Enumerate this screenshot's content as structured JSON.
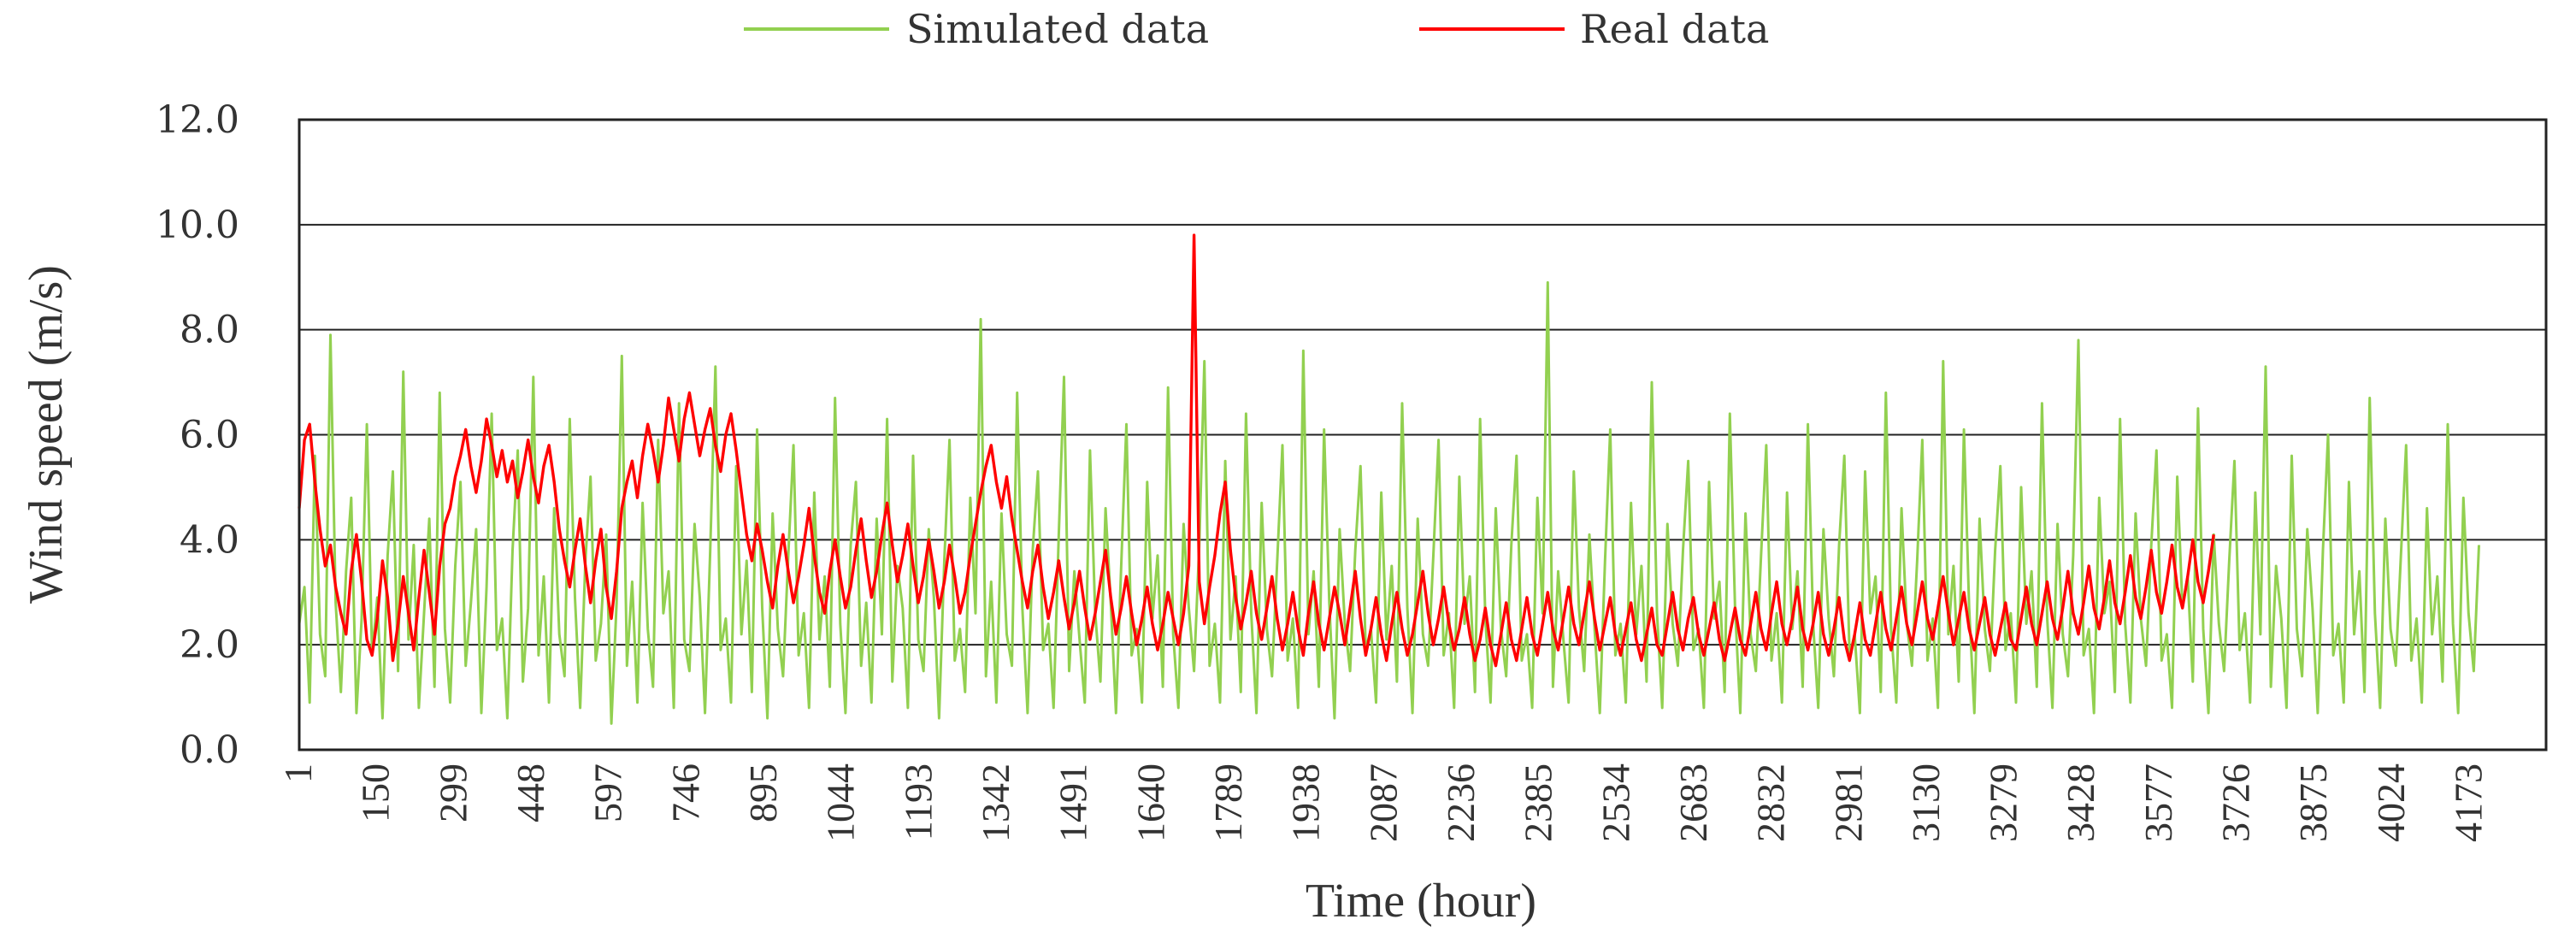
{
  "chart_data": {
    "type": "line",
    "title": "",
    "xlabel": "Time (hour)",
    "ylabel": "Wind speed (m/s)",
    "ylim": [
      0,
      12
    ],
    "xlim": [
      1,
      4320
    ],
    "y_ticks": [
      "0.0",
      "2.0",
      "4.0",
      "6.0",
      "8.0",
      "10.0",
      "12.0"
    ],
    "y_tick_values": [
      0,
      2,
      4,
      6,
      8,
      10,
      12
    ],
    "x_tick_labels": [
      "1",
      "150",
      "299",
      "448",
      "597",
      "746",
      "895",
      "1044",
      "1193",
      "1342",
      "1491",
      "1640",
      "1789",
      "1938",
      "2087",
      "2236",
      "2385",
      "2534",
      "2683",
      "2832",
      "2981",
      "3130",
      "3279",
      "3428",
      "3577",
      "3726",
      "3875",
      "4024",
      "4173"
    ],
    "grid": "horizontal",
    "legend_position": "top-center",
    "series": [
      {
        "name": "Simulated data",
        "color": "#92d050",
        "sample_every_hours": 10,
        "values": [
          2.4,
          3.1,
          0.9,
          5.6,
          2.2,
          1.4,
          7.9,
          2.8,
          1.1,
          3.4,
          4.8,
          0.7,
          2.5,
          6.2,
          1.8,
          2.9,
          0.6,
          3.7,
          5.3,
          1.5,
          7.2,
          2.1,
          3.9,
          0.8,
          2.6,
          4.4,
          1.2,
          6.8,
          2.3,
          0.9,
          3.5,
          5.1,
          1.6,
          2.8,
          4.2,
          0.7,
          3.1,
          6.4,
          1.9,
          2.5,
          0.6,
          3.8,
          5.7,
          1.3,
          2.7,
          7.1,
          1.8,
          3.3,
          0.9,
          4.6,
          2.2,
          1.4,
          6.3,
          2.9,
          0.8,
          3.6,
          5.2,
          1.7,
          2.4,
          4.1,
          0.5,
          2.8,
          7.5,
          1.6,
          3.2,
          0.9,
          4.7,
          2.3,
          1.2,
          5.9,
          2.6,
          3.4,
          0.8,
          6.6,
          2.1,
          1.5,
          4.3,
          2.9,
          0.7,
          3.8,
          7.3,
          1.9,
          2.5,
          0.9,
          5.4,
          2.2,
          3.6,
          1.1,
          6.1,
          2.7,
          0.6,
          4.5,
          2.3,
          1.4,
          3.7,
          5.8,
          1.8,
          2.6,
          0.8,
          4.9,
          2.1,
          3.3,
          1.2,
          6.7,
          2.4,
          0.7,
          3.9,
          5.1,
          1.6,
          2.8,
          0.9,
          4.4,
          2.2,
          6.3,
          1.3,
          3.5,
          2.7,
          0.8,
          5.6,
          2.1,
          1.5,
          4.2,
          2.9,
          0.6,
          3.6,
          5.9,
          1.7,
          2.3,
          1.1,
          4.8,
          2.6,
          8.2,
          1.4,
          3.2,
          0.9,
          4.5,
          2.2,
          1.6,
          6.8,
          2.7,
          0.7,
          3.8,
          5.3,
          1.9,
          2.4,
          0.8,
          4.1,
          7.1,
          1.5,
          3.4,
          2.1,
          0.9,
          5.7,
          2.6,
          1.3,
          4.6,
          2.8,
          0.7,
          3.5,
          6.2,
          1.8,
          2.3,
          0.9,
          5.1,
          2.5,
          3.7,
          1.2,
          6.9,
          2.2,
          0.8,
          4.3,
          2.7,
          1.5,
          3.9,
          7.4,
          1.6,
          2.4,
          0.9,
          5.5,
          2.1,
          3.3,
          1.1,
          6.4,
          2.6,
          0.7,
          4.7,
          2.3,
          1.4,
          3.6,
          5.8,
          1.7,
          2.5,
          0.8,
          7.6,
          2.2,
          3.4,
          1.2,
          6.1,
          2.8,
          0.6,
          4.2,
          2.4,
          1.5,
          3.8,
          5.4,
          1.9,
          2.3,
          0.9,
          4.9,
          2.1,
          3.5,
          1.3,
          6.6,
          2.7,
          0.7,
          4.4,
          2.2,
          1.6,
          3.7,
          5.9,
          1.8,
          2.6,
          0.8,
          5.2,
          2.4,
          3.3,
          1.1,
          6.3,
          2.5,
          0.9,
          4.6,
          2.3,
          1.4,
          3.9,
          5.6,
          1.7,
          2.2,
          0.8,
          4.8,
          2.6,
          8.9,
          1.2,
          3.4,
          2.1,
          0.9,
          5.3,
          2.7,
          1.5,
          4.1,
          2.3,
          0.7,
          3.6,
          6.1,
          1.8,
          2.4,
          0.9,
          4.7,
          2.2,
          3.5,
          1.3,
          7.0,
          2.6,
          0.8,
          4.3,
          2.4,
          1.6,
          3.8,
          5.5,
          1.9,
          2.3,
          0.8,
          5.1,
          2.5,
          3.2,
          1.1,
          6.4,
          2.7,
          0.7,
          4.5,
          2.2,
          1.5,
          3.7,
          5.8,
          1.7,
          2.6,
          0.9,
          4.9,
          2.3,
          3.4,
          1.2,
          6.2,
          2.4,
          0.8,
          4.2,
          2.5,
          1.4,
          3.9,
          5.6,
          1.8,
          2.2,
          0.7,
          5.3,
          2.6,
          3.3,
          1.1,
          6.8,
          2.3,
          0.9,
          4.6,
          2.4,
          1.6,
          3.6,
          5.9,
          1.7,
          2.5,
          0.8,
          7.4,
          2.2,
          3.5,
          1.3,
          6.1,
          2.7,
          0.7,
          4.4,
          2.3,
          1.5,
          3.8,
          5.4,
          1.9,
          2.6,
          0.9,
          5.0,
          2.4,
          3.4,
          1.2,
          6.6,
          2.5,
          0.8,
          4.3,
          2.2,
          1.4,
          3.7,
          7.8,
          1.8,
          2.3,
          0.7,
          4.8,
          2.6,
          3.2,
          1.1,
          6.3,
          2.4,
          0.9,
          4.5,
          2.5,
          1.6,
          3.9,
          5.7,
          1.7,
          2.2,
          0.8,
          5.2,
          2.7,
          3.3,
          1.3,
          6.5,
          2.3,
          0.7,
          4.1,
          2.4,
          1.5,
          3.6,
          5.5,
          1.9,
          2.6,
          0.9,
          4.9,
          2.2,
          7.3,
          1.2,
          3.5,
          2.5,
          0.8,
          5.6,
          2.3,
          1.4,
          4.2,
          2.7,
          0.7,
          3.8,
          6.0,
          1.8,
          2.4,
          0.9,
          5.1,
          2.2,
          3.4,
          1.1,
          6.7,
          2.6,
          0.8,
          4.4,
          2.3,
          1.6,
          3.7,
          5.8,
          1.7,
          2.5,
          0.9,
          4.6,
          2.2,
          3.3,
          1.3,
          6.2,
          2.4,
          0.7,
          4.8,
          2.6,
          1.5,
          3.9
        ]
      },
      {
        "name": "Real data",
        "color": "#ff0000",
        "sample_every_hours": 10,
        "values": [
          4.6,
          5.9,
          6.2,
          5.1,
          4.2,
          3.5,
          3.9,
          3.1,
          2.6,
          2.2,
          3.4,
          4.1,
          3.2,
          2.1,
          1.8,
          2.5,
          3.6,
          2.9,
          1.7,
          2.4,
          3.3,
          2.6,
          1.9,
          2.9,
          3.8,
          3.0,
          2.2,
          3.5,
          4.3,
          4.6,
          5.2,
          5.6,
          6.1,
          5.4,
          4.9,
          5.5,
          6.3,
          5.8,
          5.2,
          5.7,
          5.1,
          5.5,
          4.8,
          5.3,
          5.9,
          5.2,
          4.7,
          5.4,
          5.8,
          5.1,
          4.2,
          3.6,
          3.1,
          3.8,
          4.4,
          3.5,
          2.8,
          3.6,
          4.2,
          3.1,
          2.5,
          3.4,
          4.6,
          5.1,
          5.5,
          4.8,
          5.6,
          6.2,
          5.7,
          5.1,
          5.8,
          6.7,
          6.1,
          5.5,
          6.3,
          6.8,
          6.2,
          5.6,
          6.1,
          6.5,
          5.8,
          5.3,
          6.0,
          6.4,
          5.7,
          4.9,
          4.1,
          3.6,
          4.3,
          3.8,
          3.2,
          2.7,
          3.5,
          4.1,
          3.4,
          2.8,
          3.3,
          3.9,
          4.6,
          3.7,
          3.0,
          2.6,
          3.4,
          4.0,
          3.3,
          2.7,
          3.1,
          3.8,
          4.4,
          3.6,
          2.9,
          3.4,
          4.1,
          4.7,
          3.9,
          3.2,
          3.7,
          4.3,
          3.5,
          2.8,
          3.3,
          4.0,
          3.4,
          2.7,
          3.2,
          3.9,
          3.3,
          2.6,
          3.0,
          3.7,
          4.3,
          4.9,
          5.4,
          5.8,
          5.1,
          4.6,
          5.2,
          4.4,
          3.8,
          3.2,
          2.7,
          3.4,
          3.9,
          3.1,
          2.5,
          3.0,
          3.6,
          2.9,
          2.3,
          2.8,
          3.4,
          2.7,
          2.1,
          2.6,
          3.2,
          3.8,
          2.9,
          2.2,
          2.7,
          3.3,
          2.6,
          2.0,
          2.5,
          3.1,
          2.4,
          1.9,
          2.4,
          3.0,
          2.5,
          2.0,
          2.6,
          3.5,
          9.8,
          3.2,
          2.4,
          3.1,
          3.7,
          4.5,
          5.1,
          3.8,
          2.9,
          2.3,
          2.8,
          3.4,
          2.6,
          2.1,
          2.7,
          3.3,
          2.5,
          1.9,
          2.4,
          3.0,
          2.3,
          1.8,
          2.6,
          3.2,
          2.4,
          1.9,
          2.5,
          3.1,
          2.6,
          2.0,
          2.7,
          3.4,
          2.5,
          1.8,
          2.3,
          2.9,
          2.2,
          1.7,
          2.4,
          3.0,
          2.3,
          1.8,
          2.2,
          2.8,
          3.4,
          2.6,
          2.0,
          2.5,
          3.1,
          2.4,
          1.9,
          2.3,
          2.9,
          2.2,
          1.7,
          2.1,
          2.7,
          2.0,
          1.6,
          2.2,
          2.8,
          2.1,
          1.7,
          2.3,
          2.9,
          2.2,
          1.8,
          2.4,
          3.0,
          2.3,
          1.9,
          2.5,
          3.1,
          2.4,
          2.0,
          2.6,
          3.2,
          2.5,
          1.9,
          2.4,
          2.9,
          2.2,
          1.8,
          2.3,
          2.8,
          2.1,
          1.7,
          2.2,
          2.7,
          2.0,
          1.8,
          2.4,
          3.0,
          2.3,
          1.9,
          2.5,
          2.9,
          2.2,
          1.8,
          2.3,
          2.8,
          2.1,
          1.7,
          2.2,
          2.7,
          2.1,
          1.8,
          2.4,
          3.0,
          2.3,
          1.9,
          2.6,
          3.2,
          2.4,
          2.0,
          2.5,
          3.1,
          2.3,
          1.9,
          2.4,
          3.0,
          2.2,
          1.8,
          2.3,
          2.9,
          2.1,
          1.7,
          2.2,
          2.8,
          2.1,
          1.8,
          2.4,
          3.0,
          2.3,
          1.9,
          2.5,
          3.1,
          2.4,
          2.0,
          2.6,
          3.2,
          2.5,
          2.1,
          2.7,
          3.3,
          2.6,
          2.0,
          2.5,
          3.0,
          2.3,
          1.9,
          2.4,
          2.9,
          2.2,
          1.8,
          2.3,
          2.8,
          2.1,
          1.9,
          2.5,
          3.1,
          2.4,
          2.0,
          2.6,
          3.2,
          2.5,
          2.1,
          2.7,
          3.4,
          2.6,
          2.2,
          2.8,
          3.5,
          2.7,
          2.3,
          2.9,
          3.6,
          2.8,
          2.4,
          3.0,
          3.7,
          2.9,
          2.5,
          3.1,
          3.8,
          3.0,
          2.6,
          3.2,
          3.9,
          3.1,
          2.7,
          3.3,
          4.0,
          3.2,
          2.8,
          3.4,
          4.1
        ]
      }
    ]
  }
}
